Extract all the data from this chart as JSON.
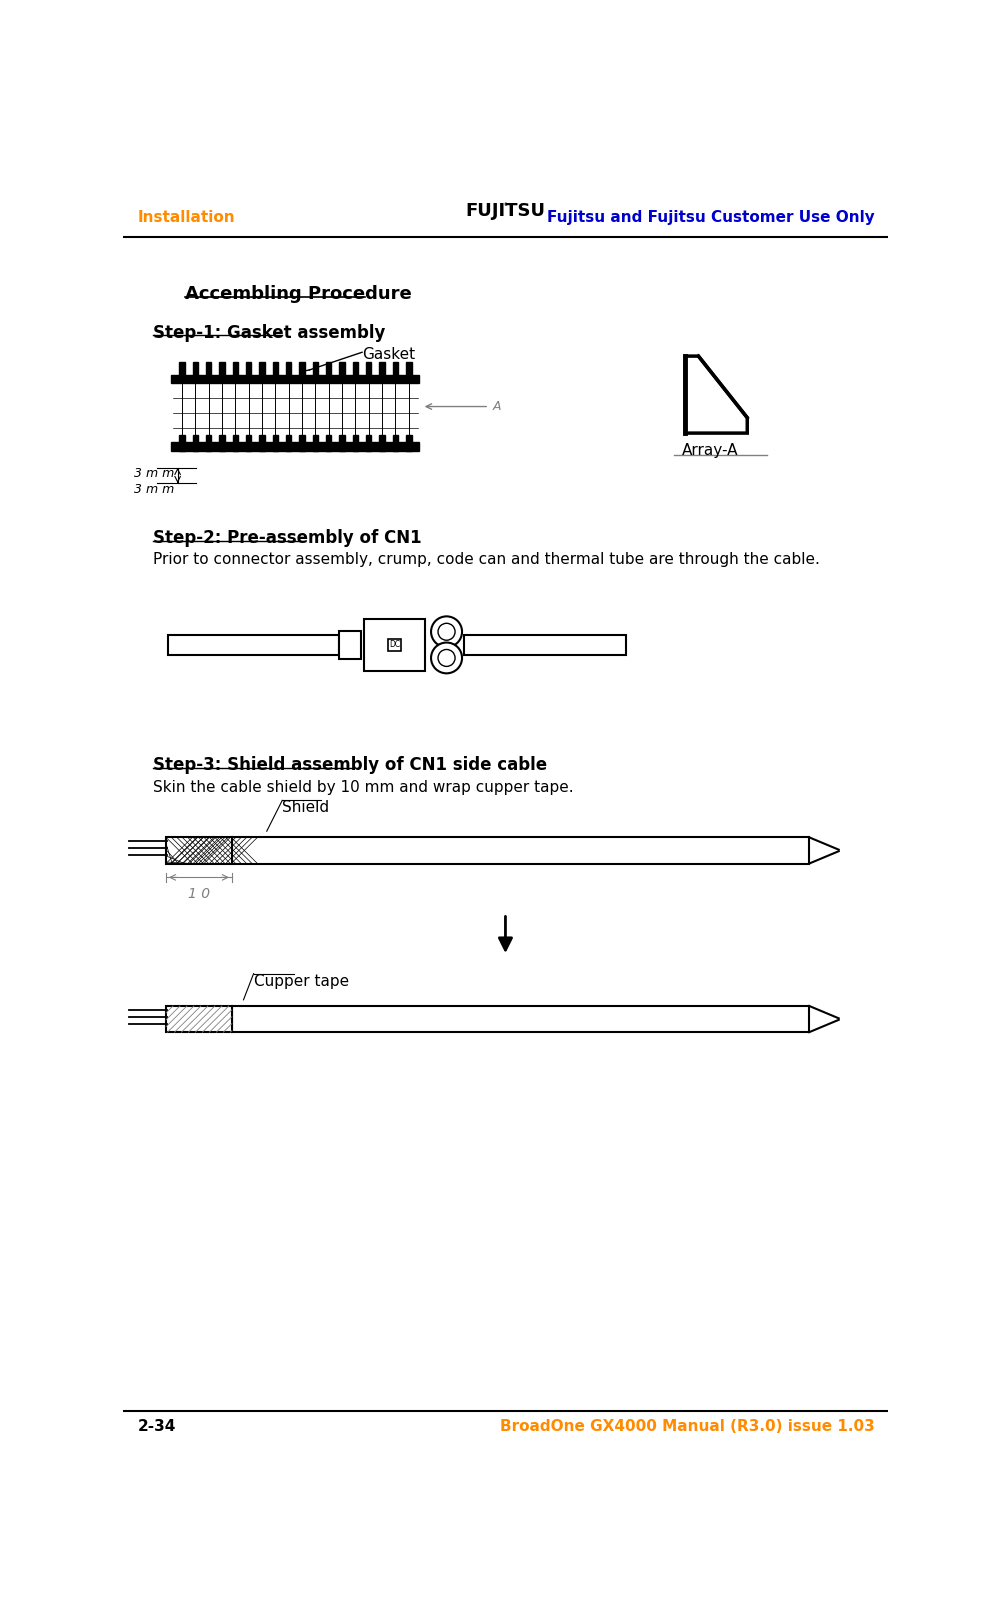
{
  "header_left": "Installation",
  "header_center": "FUJITSU",
  "header_right": "Fujitsu and Fujitsu Customer Use Only",
  "footer_left": "2-34",
  "footer_right": "BroadOne GX4000 Manual (R3.0) issue 1.03",
  "title": "Accembling Procedure",
  "step1_title": "Step-1: Gasket assembly",
  "step1_label_gasket": "Gasket",
  "step1_label_arrayA": "Array-A",
  "step2_title": "Step-2: Pre-assembly of CN1",
  "step2_text": "Prior to connector assembly, crump, code can and thermal tube are through the cable.",
  "step3_title": "Step-3: Shield assembly of CN1 side cable",
  "step3_text": "Skin the cable shield by 10 mm and wrap cupper tape.",
  "step3_label_shield": "Shield",
  "step3_label_cupper": "Cupper tape",
  "orange_color": "#FF8C00",
  "blue_color": "#0000CC",
  "black_color": "#000000",
  "gray_color": "#888888",
  "bg_color": "#FFFFFF"
}
